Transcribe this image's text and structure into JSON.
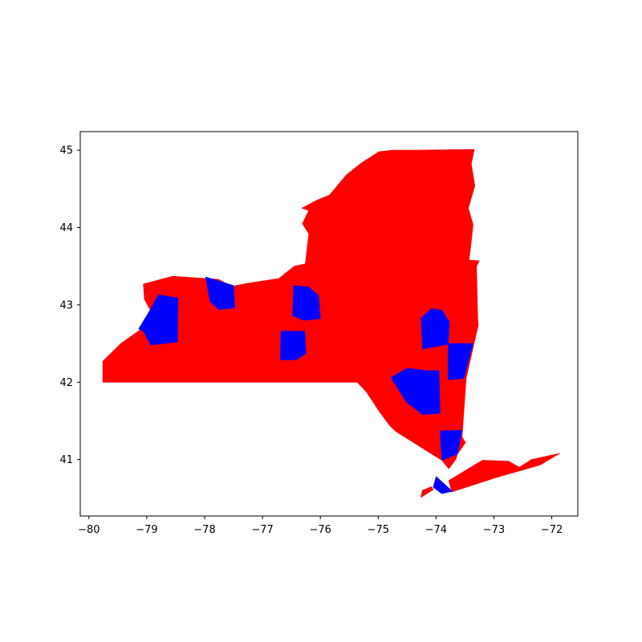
{
  "chart_data": {
    "type": "choropleth-map",
    "title": "",
    "xlabel": "",
    "ylabel": "",
    "xlim": [
      -80.15,
      -71.55
    ],
    "ylim": [
      40.27,
      45.24
    ],
    "grid": false,
    "legend": "none",
    "x_ticks": [
      {
        "value": -80,
        "label": "−80"
      },
      {
        "value": -79,
        "label": "−79"
      },
      {
        "value": -78,
        "label": "−78"
      },
      {
        "value": -77,
        "label": "−77"
      },
      {
        "value": -76,
        "label": "−76"
      },
      {
        "value": -75,
        "label": "−75"
      },
      {
        "value": -74,
        "label": "−74"
      },
      {
        "value": -73,
        "label": "−73"
      },
      {
        "value": -72,
        "label": "−72"
      }
    ],
    "y_ticks": [
      {
        "value": 41,
        "label": "41"
      },
      {
        "value": 42,
        "label": "42"
      },
      {
        "value": 43,
        "label": "43"
      },
      {
        "value": 44,
        "label": "44"
      },
      {
        "value": 45,
        "label": "45"
      }
    ],
    "colors": {
      "red": "#ff0000",
      "blue": "#0000ff",
      "axes": "#000000",
      "background": "#ffffff"
    },
    "base_state": {
      "color": "red",
      "outline": [
        [
          -79.76,
          42.27
        ],
        [
          -79.76,
          42.0
        ],
        [
          -75.36,
          42.0
        ],
        [
          -75.2,
          41.87
        ],
        [
          -74.98,
          41.62
        ],
        [
          -74.79,
          41.43
        ],
        [
          -74.69,
          41.36
        ],
        [
          -73.9,
          40.99
        ],
        [
          -73.78,
          40.88
        ],
        [
          -73.66,
          41.0
        ],
        [
          -73.63,
          41.07
        ],
        [
          -73.49,
          41.22
        ],
        [
          -73.55,
          41.29
        ],
        [
          -73.48,
          42.05
        ],
        [
          -73.27,
          42.74
        ],
        [
          -73.28,
          42.83
        ],
        [
          -73.3,
          43.5
        ],
        [
          -73.25,
          43.57
        ],
        [
          -73.43,
          43.58
        ],
        [
          -73.39,
          43.82
        ],
        [
          -73.36,
          44.04
        ],
        [
          -73.44,
          44.25
        ],
        [
          -73.33,
          44.54
        ],
        [
          -73.39,
          44.82
        ],
        [
          -73.34,
          45.01
        ],
        [
          -74.32,
          45.0
        ],
        [
          -74.74,
          45.0
        ],
        [
          -74.99,
          44.98
        ],
        [
          -75.3,
          44.83
        ],
        [
          -75.55,
          44.68
        ],
        [
          -75.84,
          44.42
        ],
        [
          -76.07,
          44.35
        ],
        [
          -76.32,
          44.25
        ],
        [
          -76.2,
          44.22
        ],
        [
          -76.31,
          44.05
        ],
        [
          -76.2,
          43.92
        ],
        [
          -76.26,
          43.53
        ],
        [
          -76.45,
          43.5
        ],
        [
          -76.72,
          43.34
        ],
        [
          -77.25,
          43.28
        ],
        [
          -77.53,
          43.24
        ],
        [
          -77.76,
          43.33
        ],
        [
          -78.55,
          43.37
        ],
        [
          -79.06,
          43.27
        ],
        [
          -79.04,
          43.07
        ],
        [
          -78.96,
          42.96
        ],
        [
          -78.87,
          42.85
        ],
        [
          -79.05,
          42.71
        ],
        [
          -79.45,
          42.5
        ],
        [
          -79.76,
          42.27
        ]
      ]
    },
    "counties": [
      {
        "name": "",
        "color": "blue",
        "points": [
          [
            -78.93,
            42.95
          ],
          [
            -78.8,
            43.13
          ],
          [
            -78.46,
            43.09
          ],
          [
            -78.47,
            42.52
          ],
          [
            -78.93,
            42.48
          ],
          [
            -79.06,
            42.66
          ],
          [
            -79.14,
            42.69
          ],
          [
            -78.93,
            42.95
          ]
        ]
      },
      {
        "name": "",
        "color": "blue",
        "points": [
          [
            -77.98,
            43.36
          ],
          [
            -77.5,
            43.25
          ],
          [
            -77.48,
            42.96
          ],
          [
            -77.76,
            42.94
          ],
          [
            -77.91,
            43.05
          ],
          [
            -77.98,
            43.36
          ]
        ]
      },
      {
        "name": "",
        "color": "blue",
        "points": [
          [
            -76.46,
            43.25
          ],
          [
            -76.2,
            43.23
          ],
          [
            -76.03,
            43.12
          ],
          [
            -76.0,
            42.82
          ],
          [
            -76.28,
            42.8
          ],
          [
            -76.48,
            42.86
          ],
          [
            -76.46,
            43.25
          ]
        ]
      },
      {
        "name": "",
        "color": "blue",
        "points": [
          [
            -76.68,
            42.66
          ],
          [
            -76.27,
            42.66
          ],
          [
            -76.25,
            42.37
          ],
          [
            -76.42,
            42.29
          ],
          [
            -76.69,
            42.29
          ],
          [
            -76.68,
            42.66
          ]
        ]
      },
      {
        "name": "",
        "color": "blue",
        "points": [
          [
            -74.26,
            42.83
          ],
          [
            -74.08,
            42.95
          ],
          [
            -73.9,
            42.93
          ],
          [
            -73.77,
            42.78
          ],
          [
            -73.79,
            42.49
          ],
          [
            -74.23,
            42.43
          ],
          [
            -74.26,
            42.83
          ]
        ]
      },
      {
        "name": "",
        "color": "blue",
        "points": [
          [
            -73.79,
            42.5
          ],
          [
            -73.36,
            42.5
          ],
          [
            -73.52,
            42.05
          ],
          [
            -73.79,
            42.03
          ],
          [
            -73.79,
            42.5
          ]
        ]
      },
      {
        "name": "",
        "color": "blue",
        "points": [
          [
            -74.78,
            42.06
          ],
          [
            -74.5,
            42.18
          ],
          [
            -74.16,
            42.15
          ],
          [
            -73.95,
            42.15
          ],
          [
            -73.93,
            41.6
          ],
          [
            -74.23,
            41.58
          ],
          [
            -74.51,
            41.74
          ],
          [
            -74.78,
            42.06
          ]
        ]
      },
      {
        "name": "",
        "color": "blue",
        "points": [
          [
            -73.93,
            41.37
          ],
          [
            -73.55,
            41.38
          ],
          [
            -73.63,
            41.07
          ],
          [
            -73.9,
            40.99
          ],
          [
            -73.93,
            41.37
          ]
        ]
      },
      {
        "name": "",
        "color": "blue",
        "points": [
          [
            -74.0,
            40.78
          ],
          [
            -73.85,
            40.68
          ],
          [
            -73.72,
            40.59
          ],
          [
            -73.9,
            40.56
          ],
          [
            -74.05,
            40.64
          ],
          [
            -74.0,
            40.78
          ]
        ]
      }
    ],
    "long_island": {
      "color": "red",
      "points": [
        [
          -73.78,
          40.73
        ],
        [
          -73.73,
          40.58
        ],
        [
          -72.95,
          40.77
        ],
        [
          -72.2,
          40.93
        ],
        [
          -71.86,
          41.08
        ],
        [
          -72.35,
          41.0
        ],
        [
          -72.56,
          40.9
        ],
        [
          -72.75,
          40.98
        ],
        [
          -73.2,
          40.99
        ],
        [
          -73.78,
          40.73
        ]
      ]
    },
    "staten_island": {
      "color": "red",
      "points": [
        [
          -74.26,
          40.51
        ],
        [
          -74.05,
          40.61
        ],
        [
          -74.08,
          40.65
        ],
        [
          -74.24,
          40.6
        ],
        [
          -74.26,
          40.51
        ]
      ]
    }
  }
}
